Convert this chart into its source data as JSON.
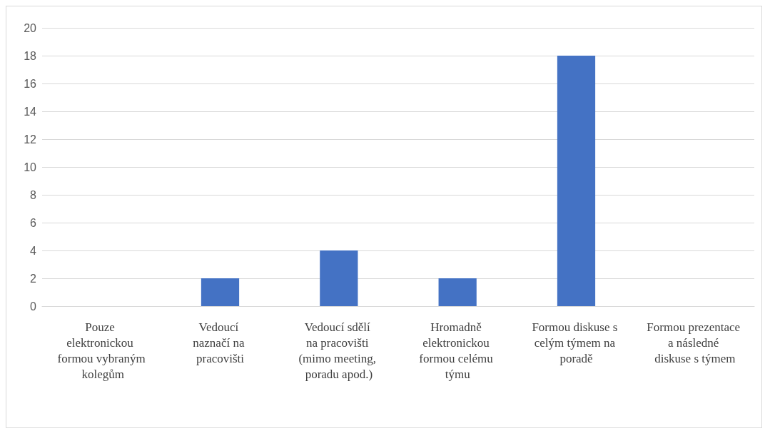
{
  "chart_data": {
    "type": "bar",
    "categories": [
      "Pouze elektronickou formou vybraným kolegům",
      "Vedoucí naznačí na pracovišti",
      "Vedoucí sdělí na pracovišti (mimo meeting, poradu apod.)",
      "Hromadně elektronickou formou celému týmu",
      "Formou diskuse s celým týmem na poradě",
      "Formou prezentace a následné diskuse s týmem"
    ],
    "values": [
      0,
      2,
      4,
      2,
      18,
      0
    ],
    "color": "#4472c4",
    "ylim": [
      0,
      20
    ],
    "yticks": [
      0,
      2,
      4,
      6,
      8,
      10,
      12,
      14,
      16,
      18,
      20
    ],
    "grid": "y"
  }
}
